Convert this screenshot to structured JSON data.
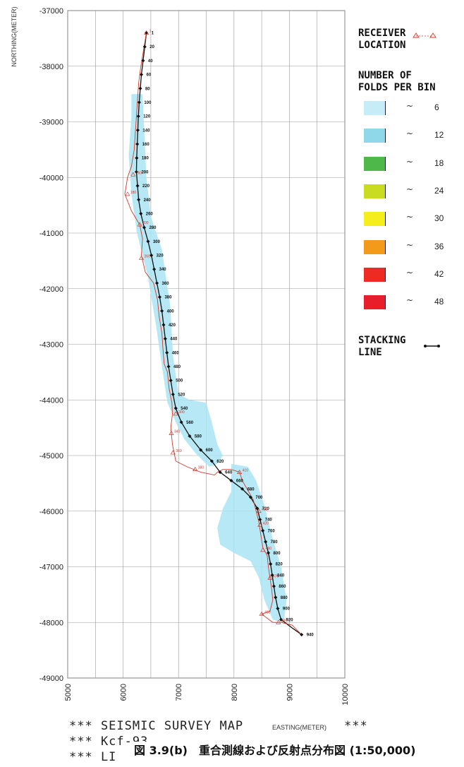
{
  "chart_data": {
    "type": "line",
    "title": "SEISMIC SURVEY MAP",
    "xlabel": "EASTING(METER)",
    "ylabel": "NORTHING(METER)",
    "xlim": [
      5000,
      10000
    ],
    "ylim": [
      -49000,
      -37000
    ],
    "grid": true,
    "x_ticks": [
      "5000",
      "6000",
      "7000",
      "8000",
      "9000",
      "10000"
    ],
    "y_ticks": [
      "-37000",
      "-38000",
      "-39000",
      "-40000",
      "-41000",
      "-42000",
      "-43000",
      "-44000",
      "-45000",
      "-46000",
      "-47000",
      "-48000",
      "-49000"
    ],
    "series": [
      {
        "name": "STACKING LINE",
        "color": "#111111",
        "points": [
          [
            6420,
            -37400
          ],
          [
            6390,
            -37650
          ],
          [
            6360,
            -37900
          ],
          [
            6330,
            -38150
          ],
          [
            6310,
            -38400
          ],
          [
            6290,
            -38650
          ],
          [
            6275,
            -38900
          ],
          [
            6265,
            -39150
          ],
          [
            6255,
            -39400
          ],
          [
            6245,
            -39650
          ],
          [
            6240,
            -39900
          ],
          [
            6260,
            -40150
          ],
          [
            6280,
            -40400
          ],
          [
            6320,
            -40650
          ],
          [
            6380,
            -40900
          ],
          [
            6450,
            -41150
          ],
          [
            6510,
            -41400
          ],
          [
            6560,
            -41650
          ],
          [
            6610,
            -41900
          ],
          [
            6660,
            -42150
          ],
          [
            6700,
            -42400
          ],
          [
            6730,
            -42650
          ],
          [
            6760,
            -42900
          ],
          [
            6790,
            -43150
          ],
          [
            6820,
            -43400
          ],
          [
            6860,
            -43650
          ],
          [
            6900,
            -43900
          ],
          [
            6950,
            -44150
          ],
          [
            7050,
            -44400
          ],
          [
            7200,
            -44650
          ],
          [
            7400,
            -44900
          ],
          [
            7600,
            -45100
          ],
          [
            7750,
            -45300
          ],
          [
            7950,
            -45450
          ],
          [
            8150,
            -45600
          ],
          [
            8300,
            -45750
          ],
          [
            8420,
            -45950
          ],
          [
            8470,
            -46150
          ],
          [
            8520,
            -46350
          ],
          [
            8570,
            -46550
          ],
          [
            8620,
            -46750
          ],
          [
            8660,
            -46950
          ],
          [
            8690,
            -47150
          ],
          [
            8720,
            -47350
          ],
          [
            8750,
            -47550
          ],
          [
            8790,
            -47750
          ],
          [
            8850,
            -47950
          ],
          [
            9050,
            -48100
          ],
          [
            9220,
            -48220
          ]
        ]
      },
      {
        "name": "RECEIVER LOCATION",
        "color": "#d23a2a",
        "points": [
          [
            6420,
            -37400
          ],
          [
            6370,
            -37700
          ],
          [
            6320,
            -38000
          ],
          [
            6280,
            -38300
          ],
          [
            6260,
            -38600
          ],
          [
            6240,
            -38900
          ],
          [
            6220,
            -39200
          ],
          [
            6200,
            -39500
          ],
          [
            6150,
            -39800
          ],
          [
            6080,
            -40000
          ],
          [
            6030,
            -40300
          ],
          [
            6150,
            -40600
          ],
          [
            6300,
            -40850
          ],
          [
            6350,
            -41100
          ],
          [
            6330,
            -41400
          ],
          [
            6400,
            -41700
          ],
          [
            6550,
            -41900
          ],
          [
            6620,
            -42200
          ],
          [
            6650,
            -42500
          ],
          [
            6700,
            -42800
          ],
          [
            6720,
            -43100
          ],
          [
            6740,
            -43350
          ],
          [
            6800,
            -43500
          ],
          [
            6830,
            -43800
          ],
          [
            6880,
            -44050
          ],
          [
            6890,
            -44250
          ],
          [
            6860,
            -44500
          ],
          [
            6890,
            -44800
          ],
          [
            6950,
            -45100
          ],
          [
            7150,
            -45200
          ],
          [
            7400,
            -45300
          ],
          [
            7650,
            -45350
          ],
          [
            7700,
            -45300
          ],
          [
            7800,
            -45250
          ],
          [
            7950,
            -45250
          ],
          [
            8100,
            -45300
          ],
          [
            8150,
            -45450
          ],
          [
            8350,
            -45800
          ],
          [
            8400,
            -46000
          ],
          [
            8450,
            -46200
          ],
          [
            8480,
            -46400
          ],
          [
            8520,
            -46650
          ],
          [
            8600,
            -46800
          ],
          [
            8620,
            -47000
          ],
          [
            8650,
            -47200
          ],
          [
            8680,
            -47400
          ],
          [
            8700,
            -47600
          ],
          [
            8650,
            -47800
          ],
          [
            8500,
            -47850
          ],
          [
            8700,
            -48000
          ],
          [
            8850,
            -48000
          ],
          [
            9050,
            -48050
          ],
          [
            9220,
            -48220
          ]
        ]
      }
    ],
    "stations": [
      {
        "label": "1",
        "x": 6420,
        "y": -37400
      },
      {
        "label": "20",
        "x": 6390,
        "y": -37650
      },
      {
        "label": "40",
        "x": 6360,
        "y": -37900
      },
      {
        "label": "60",
        "x": 6330,
        "y": -38150
      },
      {
        "label": "80",
        "x": 6310,
        "y": -38400
      },
      {
        "label": "100",
        "x": 6290,
        "y": -38650
      },
      {
        "label": "120",
        "x": 6275,
        "y": -38900
      },
      {
        "label": "140",
        "x": 6265,
        "y": -39150
      },
      {
        "label": "160",
        "x": 6255,
        "y": -39400
      },
      {
        "label": "180",
        "x": 6245,
        "y": -39650
      },
      {
        "label": "200",
        "x": 6240,
        "y": -39900
      },
      {
        "label": "220",
        "x": 6260,
        "y": -40150
      },
      {
        "label": "240",
        "x": 6280,
        "y": -40400
      },
      {
        "label": "260",
        "x": 6320,
        "y": -40650
      },
      {
        "label": "280",
        "x": 6380,
        "y": -40900
      },
      {
        "label": "300",
        "x": 6450,
        "y": -41150
      },
      {
        "label": "320",
        "x": 6510,
        "y": -41400
      },
      {
        "label": "340",
        "x": 6560,
        "y": -41650
      },
      {
        "label": "360",
        "x": 6610,
        "y": -41900
      },
      {
        "label": "380",
        "x": 6660,
        "y": -42150
      },
      {
        "label": "400",
        "x": 6700,
        "y": -42400
      },
      {
        "label": "420",
        "x": 6730,
        "y": -42650
      },
      {
        "label": "440",
        "x": 6760,
        "y": -42900
      },
      {
        "label": "460",
        "x": 6790,
        "y": -43150
      },
      {
        "label": "480",
        "x": 6820,
        "y": -43400
      },
      {
        "label": "500",
        "x": 6860,
        "y": -43650
      },
      {
        "label": "520",
        "x": 6900,
        "y": -43900
      },
      {
        "label": "540",
        "x": 6950,
        "y": -44150
      },
      {
        "label": "560",
        "x": 7050,
        "y": -44400
      },
      {
        "label": "580",
        "x": 7200,
        "y": -44650
      },
      {
        "label": "600",
        "x": 7400,
        "y": -44900
      },
      {
        "label": "620",
        "x": 7600,
        "y": -45100
      },
      {
        "label": "640",
        "x": 7750,
        "y": -45300
      },
      {
        "label": "660",
        "x": 7950,
        "y": -45450
      },
      {
        "label": "680",
        "x": 8150,
        "y": -45600
      },
      {
        "label": "700",
        "x": 8300,
        "y": -45750
      },
      {
        "label": "720",
        "x": 8420,
        "y": -45950
      },
      {
        "label": "740",
        "x": 8470,
        "y": -46150
      },
      {
        "label": "760",
        "x": 8520,
        "y": -46350
      },
      {
        "label": "780",
        "x": 8570,
        "y": -46550
      },
      {
        "label": "800",
        "x": 8620,
        "y": -46750
      },
      {
        "label": "820",
        "x": 8660,
        "y": -46950
      },
      {
        "label": "840",
        "x": 8690,
        "y": -47150
      },
      {
        "label": "860",
        "x": 8720,
        "y": -47350
      },
      {
        "label": "880",
        "x": 8750,
        "y": -47550
      },
      {
        "label": "900",
        "x": 8790,
        "y": -47750
      },
      {
        "label": "920",
        "x": 8850,
        "y": -47950
      },
      {
        "label": "940",
        "x": 9220,
        "y": -48220
      }
    ],
    "receivers": [
      {
        "label": "1",
        "x": 6420,
        "y": -37400
      },
      {
        "label": "160",
        "x": 6180,
        "y": -39950
      },
      {
        "label": "180",
        "x": 6080,
        "y": -40300
      },
      {
        "label": "200",
        "x": 6300,
        "y": -40850
      },
      {
        "label": "260",
        "x": 6330,
        "y": -41450
      },
      {
        "label": "300",
        "x": 6950,
        "y": -44250
      },
      {
        "label": "340",
        "x": 6870,
        "y": -44600
      },
      {
        "label": "360",
        "x": 6900,
        "y": -44950
      },
      {
        "label": "380",
        "x": 7300,
        "y": -45250
      },
      {
        "label": "410",
        "x": 8100,
        "y": -45300
      },
      {
        "label": "400",
        "x": 8450,
        "y": -46000
      },
      {
        "label": "420",
        "x": 8470,
        "y": -46250
      },
      {
        "label": "460",
        "x": 8520,
        "y": -46700
      },
      {
        "label": "470",
        "x": 8650,
        "y": -47200
      },
      {
        "label": "480",
        "x": 8500,
        "y": -47850
      },
      {
        "label": "485",
        "x": 8800,
        "y": -48000
      }
    ],
    "fold_coverage": {
      "color": "#a9e4f3",
      "polygons": [
        [
          [
            6150,
            -38500
          ],
          [
            6350,
            -38500
          ],
          [
            6420,
            -40000
          ],
          [
            6500,
            -40700
          ],
          [
            6700,
            -41300
          ],
          [
            6850,
            -42300
          ],
          [
            6900,
            -43200
          ],
          [
            7000,
            -43900
          ],
          [
            7200,
            -44000
          ],
          [
            7500,
            -44050
          ],
          [
            7600,
            -44400
          ],
          [
            7700,
            -44800
          ],
          [
            7800,
            -45000
          ],
          [
            7700,
            -45150
          ],
          [
            7550,
            -45200
          ],
          [
            7300,
            -44950
          ],
          [
            7100,
            -44700
          ],
          [
            6950,
            -44400
          ],
          [
            6800,
            -44050
          ],
          [
            6700,
            -43400
          ],
          [
            6600,
            -42700
          ],
          [
            6450,
            -41800
          ],
          [
            6250,
            -41000
          ],
          [
            6150,
            -40300
          ],
          [
            6100,
            -39600
          ],
          [
            6150,
            -38900
          ]
        ],
        [
          [
            7950,
            -45150
          ],
          [
            8250,
            -45200
          ],
          [
            8400,
            -45450
          ],
          [
            8550,
            -45900
          ],
          [
            8700,
            -46500
          ],
          [
            8850,
            -47000
          ],
          [
            8950,
            -47600
          ],
          [
            8900,
            -48000
          ],
          [
            8700,
            -47950
          ],
          [
            8550,
            -47600
          ],
          [
            8450,
            -47200
          ],
          [
            8300,
            -46900
          ],
          [
            8000,
            -46750
          ],
          [
            7750,
            -46600
          ],
          [
            7700,
            -46300
          ],
          [
            7800,
            -45950
          ],
          [
            7950,
            -45650
          ]
        ]
      ]
    },
    "legend": {
      "receiver_title": "RECEIVER\nLOCATION",
      "folds_title": "NUMBER OF\nFOLDS PER BIN",
      "fold_classes": [
        {
          "tilde": "~",
          "value": "6",
          "color": "#c6ecf8"
        },
        {
          "tilde": "~",
          "value": "12",
          "color": "#8fd8ea"
        },
        {
          "tilde": "~",
          "value": "18",
          "color": "#4fb84a"
        },
        {
          "tilde": "~",
          "value": "24",
          "color": "#c9dc22"
        },
        {
          "tilde": "~",
          "value": "30",
          "color": "#f6ee1c"
        },
        {
          "tilde": "~",
          "value": "36",
          "color": "#f39a1a"
        },
        {
          "tilde": "~",
          "value": "42",
          "color": "#ee2b22"
        },
        {
          "tilde": "~",
          "value": "48",
          "color": "#e81f2a"
        }
      ],
      "stacking_title": "STACKING\nLINE"
    }
  },
  "footer": {
    "line1": "*** SEISMIC SURVEY MAP",
    "line1_right": "***",
    "line2": "*** Kcf-93",
    "line3": "*** LI",
    "caption": "図 3.9(b)　重合測線および反射点分布図 (1:50,000)"
  }
}
